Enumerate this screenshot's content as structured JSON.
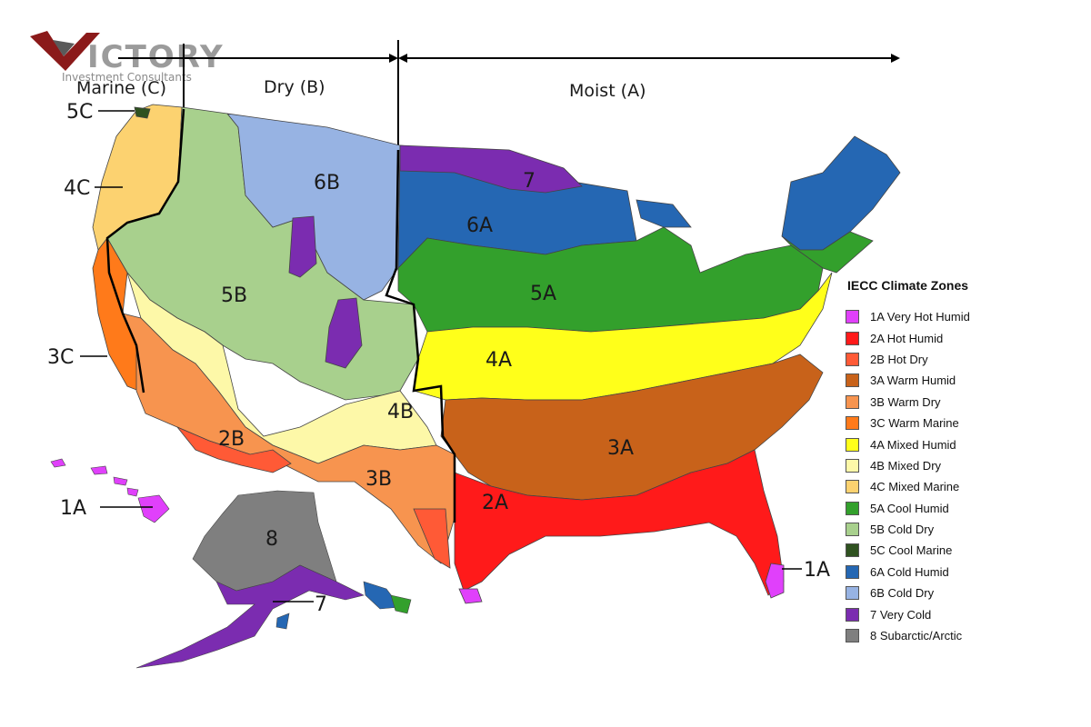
{
  "logo": {
    "brand": "ICTORY",
    "tagline": "Investment Consultants"
  },
  "moisture_regions": {
    "marine": "Marine (C)",
    "dry": "Dry (B)",
    "moist": "Moist (A)"
  },
  "zone_labels": {
    "z5c": "5C",
    "z4c": "4C",
    "z3c": "3C",
    "z1a_hawaii": "1A",
    "z6b": "6B",
    "z5b": "5B",
    "z2b": "2B",
    "z4b": "4B",
    "z3b": "3B",
    "z7_north": "7",
    "z6a": "6A",
    "z5a": "5A",
    "z4a": "4A",
    "z3a": "3A",
    "z2a": "2A",
    "z1a_florida": "1A",
    "z8": "8",
    "z7_alaska": "7"
  },
  "legend": {
    "title": "IECC Climate Zones",
    "items": [
      {
        "label": "1A Very Hot Humid",
        "color": "#e040fb"
      },
      {
        "label": "2A Hot Humid",
        "color": "#ff1a1a"
      },
      {
        "label": "2B Hot Dry",
        "color": "#ff5a36"
      },
      {
        "label": "3A Warm Humid",
        "color": "#c8621a"
      },
      {
        "label": "3B Warm Dry",
        "color": "#f7944f"
      },
      {
        "label": "3C Warm Marine",
        "color": "#ff7a1a"
      },
      {
        "label": "4A Mixed Humid",
        "color": "#ffff1a"
      },
      {
        "label": "4B Mixed Dry",
        "color": "#fdf8a8"
      },
      {
        "label": "4C Mixed Marine",
        "color": "#fcd270"
      },
      {
        "label": "5A Cool Humid",
        "color": "#33a02c"
      },
      {
        "label": "5B Cold Dry",
        "color": "#a8d08d"
      },
      {
        "label": "5C Cool Marine",
        "color": "#2f5220"
      },
      {
        "label": "6A Cold Humid",
        "color": "#2567b3"
      },
      {
        "label": "6B Cold Dry",
        "color": "#97b3e3"
      },
      {
        "label": "7 Very Cold",
        "color": "#7b2cb0"
      },
      {
        "label": "8 Subarctic/Arctic",
        "color": "#7f7f7f"
      }
    ]
  }
}
